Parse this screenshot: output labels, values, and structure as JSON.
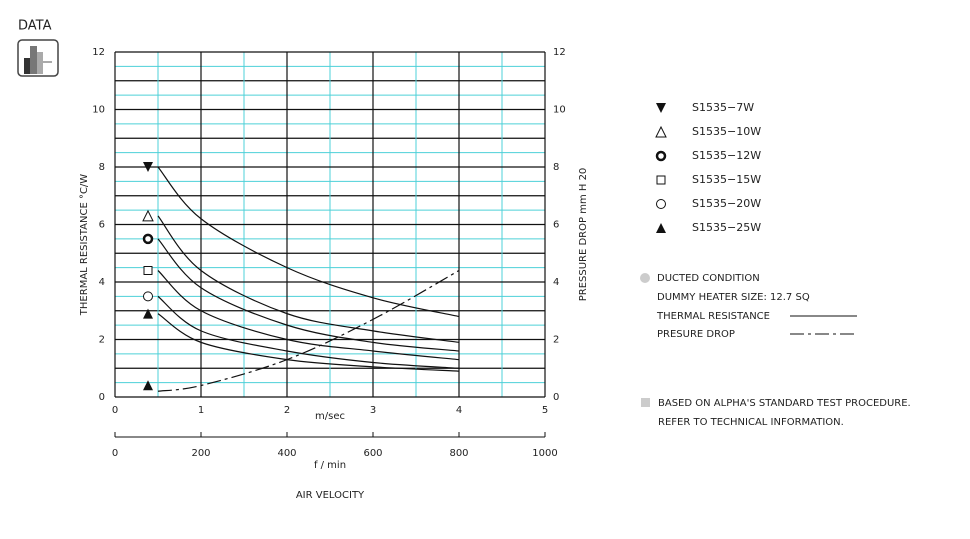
{
  "header": "DATA",
  "chart_data": {
    "type": "line",
    "xlabel": "m/sec",
    "x2label": "f / min",
    "axis_title": "AIR VELOCITY",
    "ylabel": "THERMAL   RESISTANCE    °C/W",
    "y2label": "PRESSURE   DROP      mm H 20",
    "x": [
      0.5,
      1,
      2,
      3,
      4
    ],
    "xlim": [
      0,
      5
    ],
    "xticks": [
      0,
      1,
      2,
      3,
      4,
      5
    ],
    "x2lim": [
      0,
      1000
    ],
    "x2ticks": [
      0,
      200,
      400,
      600,
      800,
      1000
    ],
    "ylim": [
      0,
      12
    ],
    "yticks": [
      0,
      2,
      4,
      6,
      8,
      10,
      12
    ],
    "y2lim": [
      0,
      12
    ],
    "y2ticks": [
      0,
      2,
      4,
      6,
      8,
      10,
      12
    ],
    "grid": true,
    "color": "#111",
    "minor_grid_color": "#4dd0d8",
    "series": [
      {
        "name": "S1535−7W",
        "marker": "down-filled",
        "values": [
          8.0,
          6.2,
          4.5,
          3.45,
          2.8
        ]
      },
      {
        "name": "S1535−10W",
        "marker": "up-open",
        "values": [
          6.3,
          4.4,
          2.9,
          2.3,
          1.9
        ]
      },
      {
        "name": "S1535−12W",
        "marker": "ring",
        "values": [
          5.5,
          3.8,
          2.5,
          1.9,
          1.6
        ]
      },
      {
        "name": "S1535−15W",
        "marker": "square-open",
        "values": [
          4.4,
          3.0,
          2.0,
          1.6,
          1.3
        ]
      },
      {
        "name": "S1535−20W",
        "marker": "circle-open",
        "values": [
          3.5,
          2.3,
          1.6,
          1.2,
          1.0
        ]
      },
      {
        "name": "S1535−25W",
        "marker": "up-filled",
        "values": [
          2.9,
          1.9,
          1.3,
          1.05,
          0.9
        ]
      },
      {
        "name": "PRESURE DROP",
        "marker": "up-filled",
        "axis": "y2",
        "dash": true,
        "values": [
          0.2,
          0.4,
          1.3,
          2.7,
          4.4
        ]
      }
    ],
    "notes": [
      "DUCTED CONDITION",
      "DUMMY HEATER SIZE: 12.7 SQ",
      "THERMAL RESISTANCE"
    ],
    "footnotes": [
      "BASED ON ALPHA'S STANDARD TEST PROCEDURE.",
      "REFER TO TECHNICAL INFORMATION."
    ]
  }
}
